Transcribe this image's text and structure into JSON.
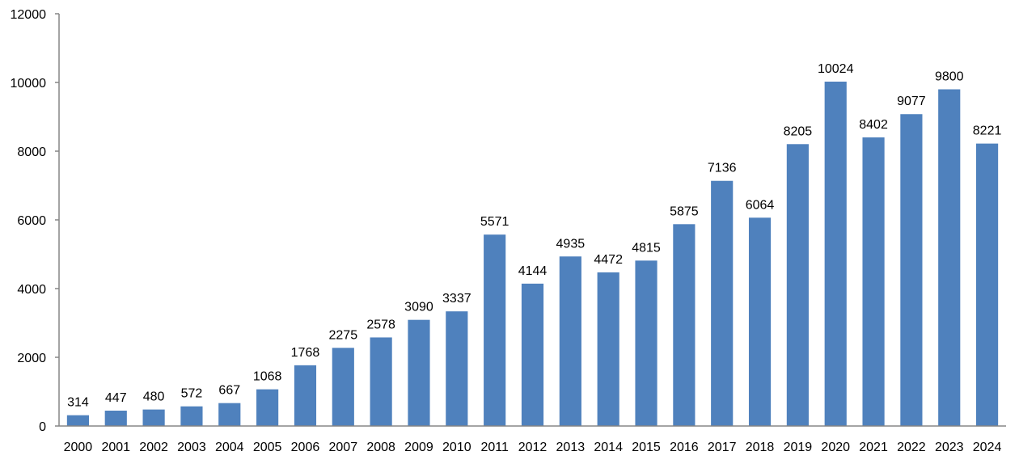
{
  "chart_data": {
    "type": "bar",
    "title": "",
    "xlabel": "",
    "ylabel": "",
    "categories": [
      "2000",
      "2001",
      "2002",
      "2003",
      "2004",
      "2005",
      "2006",
      "2007",
      "2008",
      "2009",
      "2010",
      "2011",
      "2012",
      "2013",
      "2014",
      "2015",
      "2016",
      "2017",
      "2018",
      "2019",
      "2020",
      "2021",
      "2022",
      "2023",
      "2024"
    ],
    "values": [
      314,
      447,
      480,
      572,
      667,
      1068,
      1768,
      2275,
      2578,
      3090,
      3337,
      5571,
      4144,
      4935,
      4472,
      4815,
      5875,
      7136,
      6064,
      8205,
      10024,
      8402,
      9077,
      9800,
      8221
    ],
    "ylim": [
      0,
      12000
    ],
    "yticks": [
      0,
      2000,
      4000,
      6000,
      8000,
      10000,
      12000
    ],
    "grid": false,
    "legend": "none",
    "bar_color": "#4F81BD"
  }
}
